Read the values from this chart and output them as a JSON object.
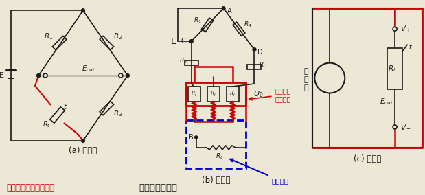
{
  "bg_color": "#ede8d5",
  "black": "#1a1a1a",
  "red": "#cc0000",
  "blue": "#0000cc",
  "label_a": "(a) 二线制",
  "label_b": "(b) 三线制",
  "label_c": "(c) 四线制",
  "bottom_left": "图中红色线即为外接线",
  "bottom_center": "热电阻接线方式",
  "anno_red": "表示外接\n导线电阻",
  "anno_blue": "热电阻体",
  "heng": "恒",
  "liu": "流",
  "yuan": "源"
}
